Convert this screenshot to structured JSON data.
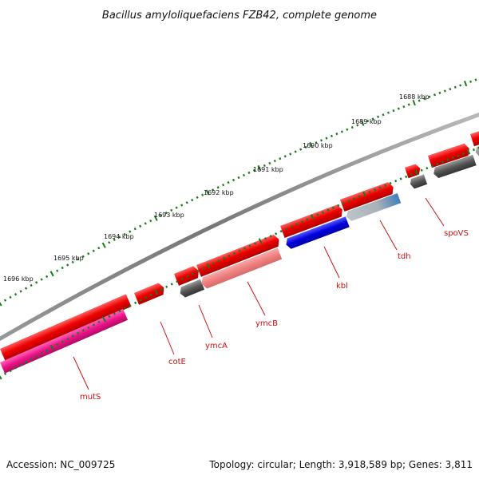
{
  "title": "Bacillus amyloliquefaciens FZB42, complete genome",
  "footer": {
    "accession": "Accession: NC_009725",
    "summary": "Topology: circular; Length: 3,918,589 bp; Genes: 3,811"
  },
  "ruler": {
    "labels": [
      "1688 kbp",
      "1689 kbp",
      "1690 kbp",
      "1691 kbp",
      "1692 kbp",
      "1693 kbp",
      "1694 kbp",
      "1695 kbp",
      "1696 kbp"
    ]
  },
  "genes": [
    {
      "name": "spoVS"
    },
    {
      "name": "tdh"
    },
    {
      "name": "kbl"
    },
    {
      "name": "ymcB"
    },
    {
      "name": "ymcA"
    },
    {
      "name": "cotE"
    },
    {
      "name": "mutS"
    }
  ],
  "colors": {
    "cds_forward": "#ee0000",
    "cds_reverse_grey": "#555555",
    "kbl": "#0000dd",
    "tdh": "#5b8db8",
    "ymcB": "#f08080",
    "mutS": "#ee1188",
    "backbone": "#888888",
    "ruler_ticks": "#1a7a1a",
    "label_lines": "#cc0000"
  }
}
